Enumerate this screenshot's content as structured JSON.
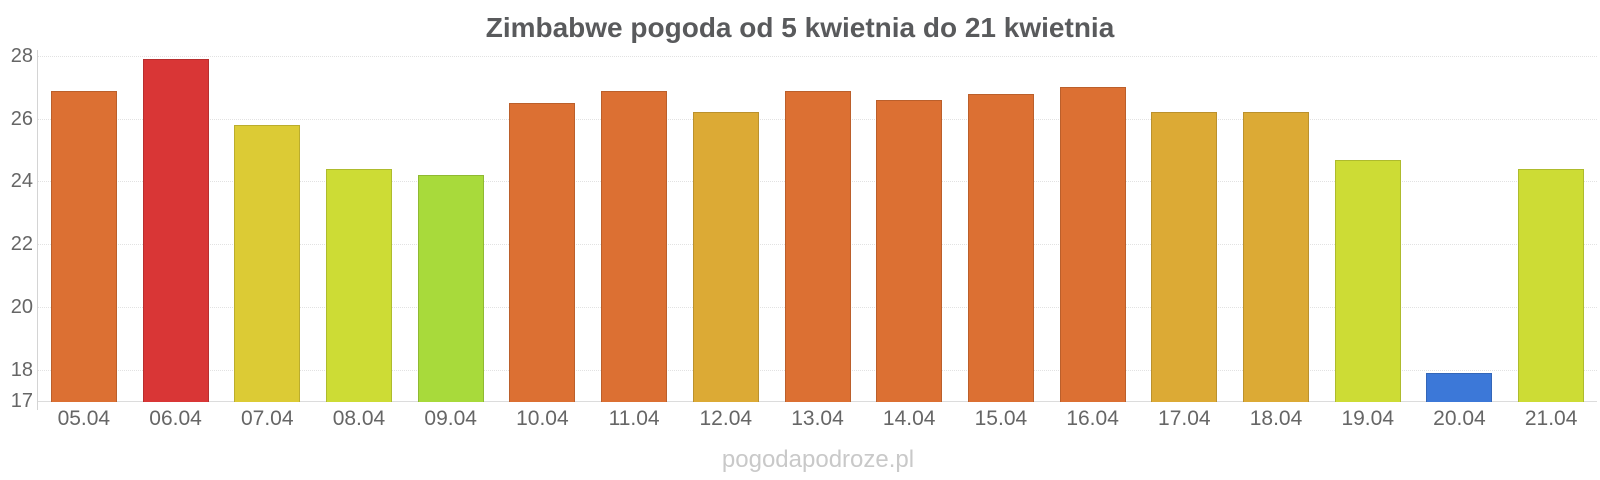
{
  "title": "Zimbabwe pogoda od 5 kwietnia do 21 kwietnia",
  "watermark": "pogodapodroze.pl",
  "chart_data": {
    "type": "bar",
    "title": "Zimbabwe pogoda od 5 kwietnia do 21 kwietnia",
    "categories": [
      "05.04",
      "06.04",
      "07.04",
      "08.04",
      "09.04",
      "10.04",
      "11.04",
      "12.04",
      "13.04",
      "14.04",
      "15.04",
      "16.04",
      "17.04",
      "18.04",
      "19.04",
      "20.04",
      "21.04"
    ],
    "values": [
      26.9,
      27.9,
      25.8,
      24.4,
      24.2,
      26.5,
      26.9,
      26.2,
      26.9,
      26.6,
      26.8,
      27.0,
      26.2,
      26.2,
      24.7,
      17.9,
      24.4
    ],
    "bar_colors": [
      "#dc7033",
      "#d93636",
      "#dccb35",
      "#cddc35",
      "#a8da3b",
      "#dc7033",
      "#dc7033",
      "#dcaa35",
      "#dc7033",
      "#dc7033",
      "#dc7033",
      "#dc7033",
      "#dcaa35",
      "#dcaa35",
      "#cddc35",
      "#3c78d8",
      "#cddc35"
    ],
    "unit": "°C",
    "xlabel": "",
    "ylabel": "",
    "ylim": [
      17,
      28
    ],
    "yticks": [
      28,
      26,
      24,
      22,
      20,
      18,
      17
    ],
    "gridline_values": [
      28,
      26,
      24,
      22,
      20,
      18
    ],
    "grid": "dotted",
    "legend": "none"
  }
}
